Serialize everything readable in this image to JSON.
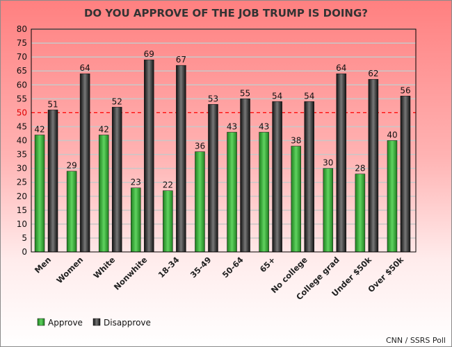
{
  "chart_data": {
    "type": "bar",
    "title": "DO YOU APPROVE OF THE JOB TRUMP IS DOING?",
    "categories": [
      "Men",
      "Women",
      "White",
      "Nonwhite",
      "18-34",
      "35-49",
      "50-64",
      "65+",
      "No college",
      "College grad",
      "Under $50k",
      "Over $50k"
    ],
    "series": [
      {
        "name": "Approve",
        "color": "#2e9e2e",
        "values": [
          42,
          29,
          42,
          23,
          22,
          36,
          43,
          43,
          38,
          30,
          28,
          40
        ]
      },
      {
        "name": "Disapprove",
        "color": "#1e1e1e",
        "values": [
          51,
          64,
          52,
          69,
          67,
          53,
          55,
          54,
          54,
          64,
          62,
          56
        ]
      }
    ],
    "ylim": [
      0,
      80
    ],
    "yticks": [
      0,
      5,
      10,
      15,
      20,
      25,
      30,
      35,
      40,
      45,
      50,
      55,
      60,
      65,
      70,
      75,
      80
    ],
    "grid": true,
    "reference_line": {
      "value": 50,
      "color": "#ff0000",
      "style": "dashed"
    },
    "legend_placement": "bottom-left",
    "source": "CNN / SSRS Poll"
  }
}
